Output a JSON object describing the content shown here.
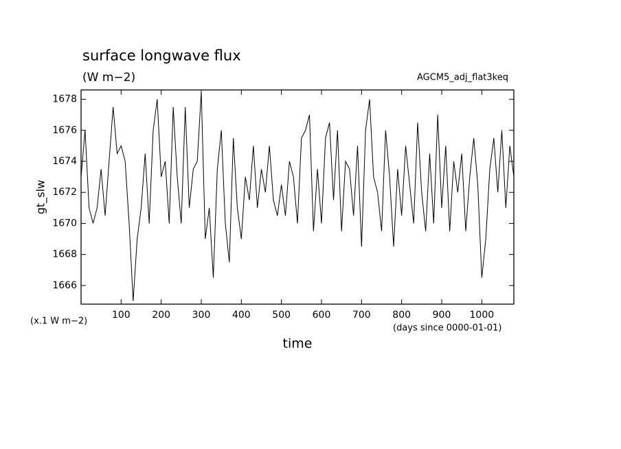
{
  "chart_data": {
    "type": "line",
    "title": "surface longwave flux",
    "subtitle": "(W m−2)",
    "annotation": "AGCM5_adj_flat3keq",
    "y_label": "gt_slw",
    "y_unit": "(x.1 W m−2)",
    "x_label": "time",
    "x_unit": "(days since 0000-01-01)",
    "color": "#000000",
    "xlim": [
      0,
      1080
    ],
    "ylim": [
      1664.8,
      1678.6
    ],
    "xticks": [
      100,
      200,
      300,
      400,
      500,
      600,
      700,
      800,
      900,
      1000
    ],
    "yticks": [
      1666,
      1668,
      1670,
      1672,
      1674,
      1676,
      1678
    ],
    "x": [
      0,
      10,
      20,
      30,
      40,
      50,
      60,
      70,
      80,
      90,
      100,
      110,
      120,
      130,
      140,
      150,
      160,
      170,
      180,
      190,
      200,
      210,
      220,
      230,
      240,
      250,
      260,
      270,
      280,
      290,
      300,
      310,
      320,
      330,
      340,
      350,
      360,
      370,
      380,
      390,
      400,
      410,
      420,
      430,
      440,
      450,
      460,
      470,
      480,
      490,
      500,
      510,
      520,
      530,
      540,
      550,
      560,
      570,
      580,
      590,
      600,
      610,
      620,
      630,
      640,
      650,
      660,
      670,
      680,
      690,
      700,
      710,
      720,
      730,
      740,
      750,
      760,
      770,
      780,
      790,
      800,
      810,
      820,
      830,
      840,
      850,
      860,
      870,
      880,
      890,
      900,
      910,
      920,
      930,
      940,
      950,
      960,
      970,
      980,
      990,
      1000,
      1010,
      1020,
      1030,
      1040,
      1050,
      1060,
      1070,
      1080
    ],
    "values": [
      1673,
      1676,
      1671,
      1670,
      1671,
      1673.5,
      1670.5,
      1674,
      1677.5,
      1674.5,
      1675,
      1674,
      1670,
      1665,
      1669,
      1671,
      1674.5,
      1670,
      1676,
      1678,
      1673,
      1674,
      1670,
      1677.5,
      1673,
      1670,
      1677.5,
      1671,
      1673.5,
      1674,
      1678.5,
      1669,
      1671,
      1666.5,
      1673.5,
      1676,
      1670,
      1667.5,
      1675.5,
      1671,
      1669,
      1673,
      1671.5,
      1675,
      1671,
      1673.5,
      1672,
      1675,
      1671.5,
      1670.5,
      1672.5,
      1670.5,
      1674,
      1673,
      1670,
      1675.5,
      1676,
      1677,
      1669.5,
      1673.5,
      1670,
      1675.5,
      1676.5,
      1671.5,
      1676,
      1669.5,
      1674,
      1673.5,
      1670.5,
      1675,
      1668.5,
      1676,
      1678,
      1673,
      1672,
      1669.5,
      1676,
      1673,
      1668.5,
      1673.5,
      1670.5,
      1675,
      1672.5,
      1670,
      1676.5,
      1672,
      1669.5,
      1674.5,
      1670,
      1677,
      1671,
      1675,
      1669.5,
      1674,
      1672,
      1674.5,
      1669.5,
      1673,
      1675.5,
      1672.5,
      1666.5,
      1669,
      1673.5,
      1675.5,
      1672,
      1676,
      1671,
      1675,
      1673
    ]
  }
}
